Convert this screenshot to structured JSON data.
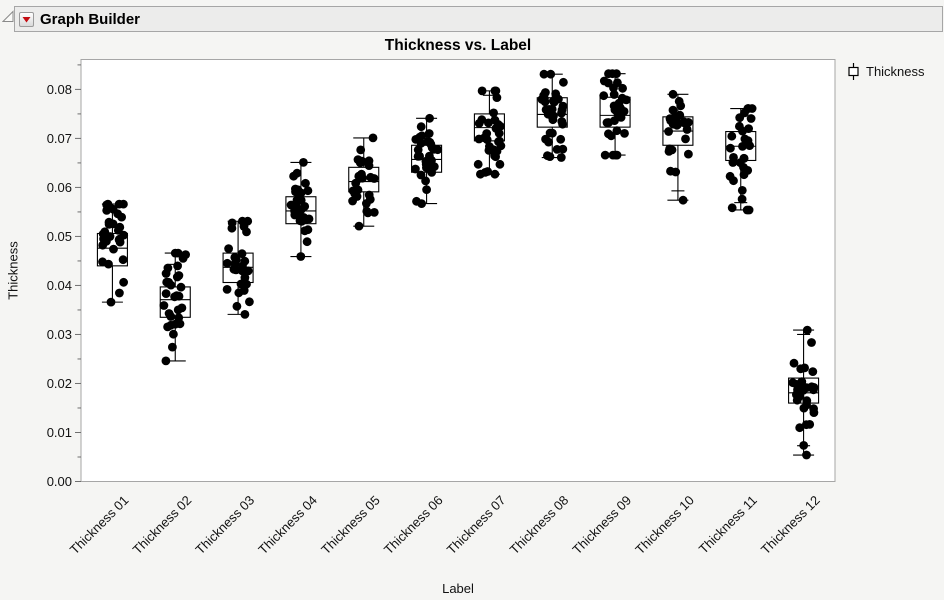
{
  "window": {
    "header": {
      "title": "Graph Builder",
      "disclosure_icon": "disclosure-triangle",
      "menu_icon": "red-triangle-dropdown"
    }
  },
  "legend": {
    "icon": "boxplot-glyph",
    "label": "Thickness"
  },
  "colors": {
    "page_bg": "#f5f5f3",
    "header_bg": "#ececeb",
    "header_border": "#a6a6a6",
    "plot_bg": "#ffffff",
    "plot_border": "#a6a6a6",
    "data_color": "#000000",
    "menu_red": "#c40d12",
    "text": "#111111"
  },
  "chart_data": {
    "type": "box",
    "variant": "outlier-box-plots-with-jittered-points",
    "title": "Thickness vs. Label",
    "xlabel": "Label",
    "ylabel": "Thickness",
    "series_name": "Thickness",
    "legend_position": "right",
    "grid": false,
    "ylim": [
      0,
      0.0861
    ],
    "ytick_step": 0.01,
    "yminor_step": 0.005,
    "ytick_decimals": 2,
    "categories": [
      "Thickness 01",
      "Thickness 02",
      "Thickness 03",
      "Thickness 04",
      "Thickness 05",
      "Thickness 06",
      "Thickness 07",
      "Thickness 08",
      "Thickness 09",
      "Thickness 10",
      "Thickness 11",
      "Thickness 12"
    ],
    "boxes": [
      {
        "min": 0.0366,
        "q1": 0.044,
        "median": 0.0476,
        "q3": 0.0506,
        "max": 0.0566,
        "n": 30
      },
      {
        "min": 0.0246,
        "q1": 0.0335,
        "median": 0.0371,
        "q3": 0.0397,
        "max": 0.0466,
        "n": 30,
        "inner_caps": [
          0.0443
        ]
      },
      {
        "min": 0.0341,
        "q1": 0.0406,
        "median": 0.0437,
        "q3": 0.0466,
        "max": 0.0531,
        "n": 28
      },
      {
        "min": 0.0459,
        "q1": 0.0526,
        "median": 0.0552,
        "q3": 0.0581,
        "max": 0.0651,
        "n": 30
      },
      {
        "min": 0.0521,
        "q1": 0.0591,
        "median": 0.0612,
        "q3": 0.0641,
        "max": 0.0701,
        "n": 28
      },
      {
        "min": 0.0567,
        "q1": 0.0631,
        "median": 0.0657,
        "q3": 0.0686,
        "max": 0.0741,
        "n": 30
      },
      {
        "min": 0.0627,
        "q1": 0.0695,
        "median": 0.0722,
        "q3": 0.075,
        "max": 0.0797,
        "n": 32,
        "inner_caps": [
          0.0788
        ]
      },
      {
        "min": 0.0661,
        "q1": 0.0723,
        "median": 0.0749,
        "q3": 0.0783,
        "max": 0.0831,
        "n": 34
      },
      {
        "min": 0.0666,
        "q1": 0.0723,
        "median": 0.0747,
        "q3": 0.0784,
        "max": 0.0832,
        "n": 34
      },
      {
        "min": 0.0574,
        "q1": 0.0686,
        "median": 0.0715,
        "q3": 0.0744,
        "max": 0.079,
        "n": 26,
        "inner_caps": [
          0.0593
        ]
      },
      {
        "min": 0.0554,
        "q1": 0.0655,
        "median": 0.0684,
        "q3": 0.0714,
        "max": 0.0761,
        "n": 30,
        "inner_caps": [
          0.0569
        ]
      },
      {
        "min": 0.0054,
        "q1": 0.016,
        "median": 0.0181,
        "q3": 0.0211,
        "max": 0.0309,
        "n": 30,
        "inner_caps": [
          0.03,
          0.0073
        ]
      }
    ]
  }
}
